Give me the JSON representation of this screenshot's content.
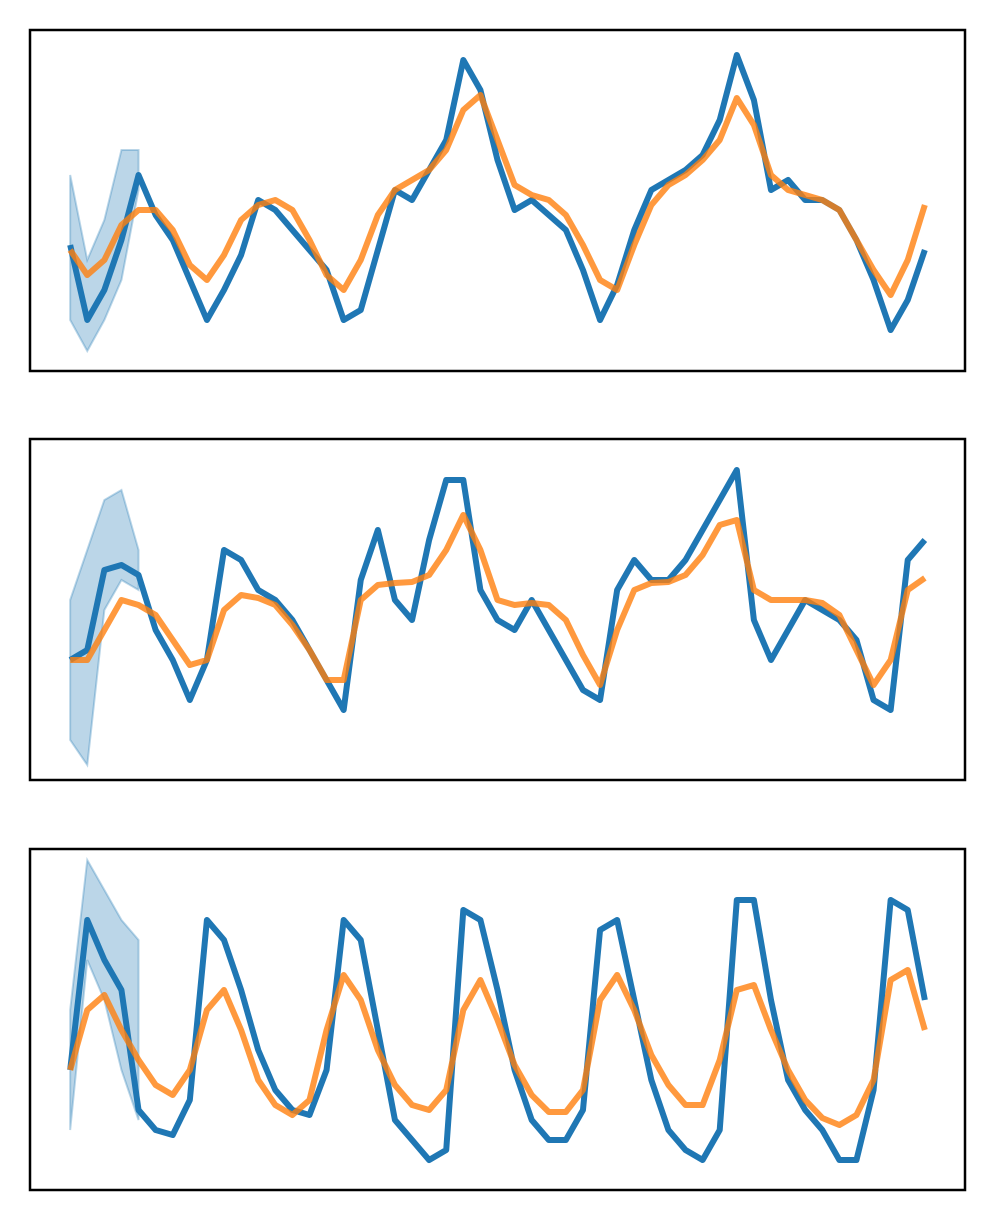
{
  "chart_data": [
    {
      "type": "line",
      "xlim": [
        -4.7,
        104.7
      ],
      "ylim": [
        0,
        341
      ],
      "x": [
        0,
        2,
        4,
        6,
        8,
        10,
        12,
        14,
        16,
        18,
        20,
        22,
        24,
        26,
        28,
        30,
        32,
        34,
        36,
        38,
        40,
        42,
        44,
        46,
        48,
        50,
        52,
        54,
        56,
        58,
        60,
        62,
        64,
        66,
        68,
        70,
        72,
        74,
        76,
        78,
        80,
        82,
        84,
        86,
        88,
        90,
        92,
        94,
        96,
        98,
        100
      ],
      "band": {
        "color": "#1f77b4",
        "x": [
          0,
          2,
          4,
          6,
          8
        ],
        "lower": [
          51,
          20,
          51,
          91,
          181
        ],
        "upper": [
          196,
          111,
          151,
          221,
          221
        ]
      },
      "series": [
        {
          "color": "#1f77b4",
          "values": [
            126,
            51,
            81,
            131,
            196,
            156,
            131,
            91,
            51,
            81,
            116,
            171,
            161,
            141,
            121,
            101,
            51,
            61,
            121,
            181,
            171,
            201,
            231,
            311,
            281,
            211,
            161,
            171,
            156,
            141,
            101,
            51,
            86,
            141,
            181,
            191,
            201,
            216,
            251,
            316,
            271,
            181,
            191,
            171,
            171,
            161,
            131,
            91,
            41,
            71,
            121
          ]
        },
        {
          "color": "#ff7f0e",
          "values": [
            121,
            96,
            111,
            146,
            161,
            161,
            141,
            106,
            91,
            116,
            151,
            166,
            171,
            161,
            131,
            96,
            81,
            111,
            156,
            181,
            191,
            201,
            221,
            261,
            276,
            231,
            186,
            176,
            171,
            156,
            126,
            91,
            81,
            126,
            166,
            186,
            196,
            211,
            231,
            273,
            246,
            196,
            181,
            176,
            171,
            161,
            131,
            101,
            76,
            111,
            166
          ]
        }
      ]
    },
    {
      "type": "line",
      "xlim": [
        -4.7,
        104.7
      ],
      "ylim": [
        0,
        341
      ],
      "x": [
        0,
        2,
        4,
        6,
        8,
        10,
        12,
        14,
        16,
        18,
        20,
        22,
        24,
        26,
        28,
        30,
        32,
        34,
        36,
        38,
        40,
        42,
        44,
        46,
        48,
        50,
        52,
        54,
        56,
        58,
        60,
        62,
        64,
        66,
        68,
        70,
        72,
        74,
        76,
        78,
        80,
        82,
        84,
        86,
        88,
        90,
        92,
        94,
        96,
        98,
        100
      ],
      "band": {
        "color": "#1f77b4",
        "x": [
          0,
          2,
          4,
          6,
          8
        ],
        "lower": [
          40,
          15,
          170,
          200,
          190
        ],
        "upper": [
          180,
          230,
          280,
          290,
          230
        ]
      },
      "series": [
        {
          "color": "#1f77b4",
          "values": [
            120,
            130,
            210,
            215,
            205,
            150,
            120,
            80,
            120,
            230,
            220,
            190,
            180,
            160,
            130,
            100,
            70,
            200,
            250,
            180,
            160,
            240,
            300,
            300,
            190,
            160,
            150,
            180,
            150,
            120,
            90,
            80,
            190,
            220,
            200,
            200,
            220,
            250,
            280,
            310,
            160,
            120,
            150,
            180,
            170,
            160,
            140,
            80,
            70,
            220,
            240
          ]
        },
        {
          "color": "#ff7f0e",
          "values": [
            120,
            120,
            150,
            180,
            175,
            165,
            140,
            115,
            120,
            170,
            185,
            182,
            175,
            155,
            130,
            100,
            100,
            180,
            195,
            197,
            198,
            205,
            230,
            265,
            230,
            180,
            175,
            177,
            175,
            160,
            125,
            95,
            150,
            190,
            197,
            198,
            205,
            225,
            255,
            260,
            190,
            180,
            180,
            180,
            177,
            165,
            130,
            95,
            120,
            190,
            202
          ]
        }
      ]
    },
    {
      "type": "line",
      "xlim": [
        -4.7,
        104.7
      ],
      "ylim": [
        0,
        341
      ],
      "x": [
        0,
        2,
        4,
        6,
        8,
        10,
        12,
        14,
        16,
        18,
        20,
        22,
        24,
        26,
        28,
        30,
        32,
        34,
        36,
        38,
        40,
        42,
        44,
        46,
        48,
        50,
        52,
        54,
        56,
        58,
        60,
        62,
        64,
        66,
        68,
        70,
        72,
        74,
        76,
        78,
        80,
        82,
        84,
        86,
        88,
        90,
        92,
        94,
        96,
        98,
        100
      ],
      "band": {
        "color": "#1f77b4",
        "x": [
          0,
          2,
          4,
          6,
          8
        ],
        "lower": [
          60,
          230,
          190,
          120,
          70
        ],
        "upper": [
          180,
          330,
          300,
          270,
          250
        ]
      },
      "series": [
        {
          "color": "#1f77b4",
          "values": [
            120,
            270,
            230,
            200,
            80,
            60,
            55,
            90,
            270,
            250,
            200,
            140,
            100,
            80,
            75,
            120,
            270,
            250,
            160,
            70,
            50,
            30,
            40,
            280,
            270,
            200,
            120,
            70,
            50,
            50,
            80,
            260,
            270,
            190,
            110,
            60,
            40,
            30,
            60,
            290,
            290,
            190,
            110,
            80,
            60,
            30,
            30,
            100,
            290,
            280,
            190
          ]
        },
        {
          "color": "#ff7f0e",
          "values": [
            120,
            180,
            195,
            160,
            130,
            105,
            95,
            120,
            180,
            200,
            160,
            110,
            85,
            75,
            90,
            160,
            215,
            190,
            140,
            105,
            85,
            80,
            100,
            180,
            210,
            170,
            125,
            95,
            78,
            78,
            100,
            190,
            215,
            180,
            135,
            105,
            85,
            85,
            130,
            200,
            205,
            160,
            120,
            90,
            72,
            65,
            75,
            110,
            210,
            220,
            160
          ]
        }
      ]
    }
  ]
}
